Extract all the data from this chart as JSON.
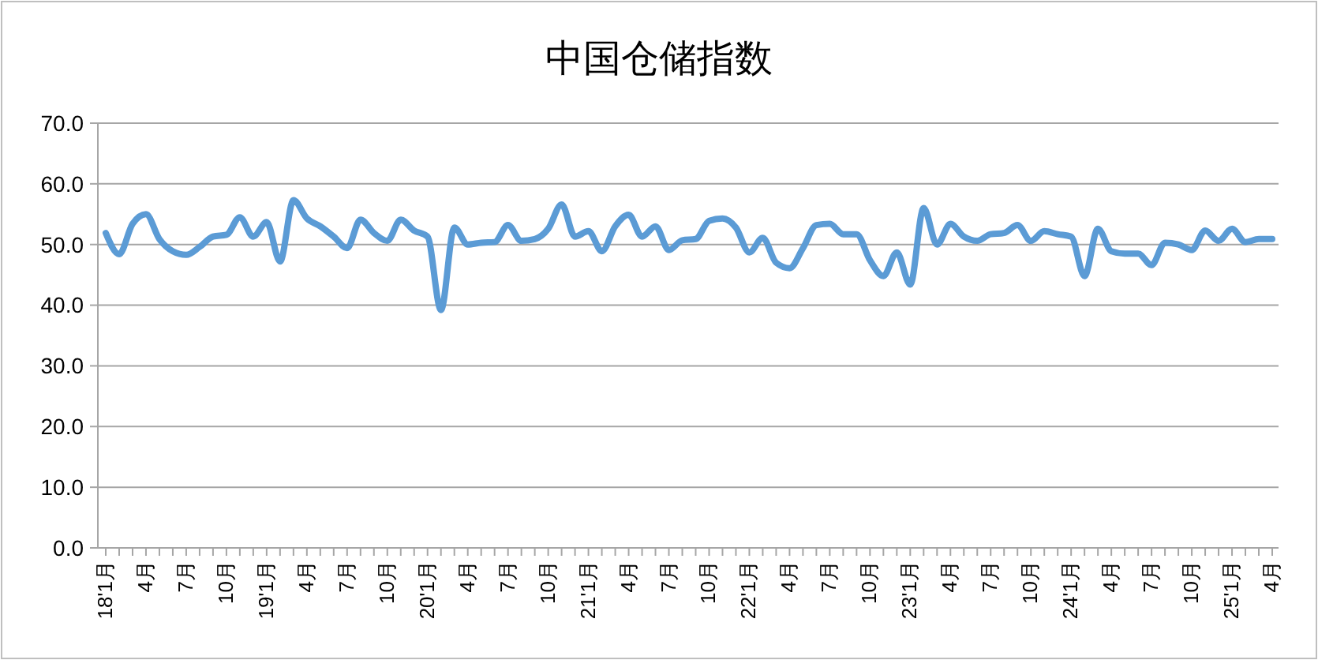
{
  "chart_data": {
    "type": "line",
    "title": "中国仓储指数",
    "categories": [
      "18'1月",
      null,
      null,
      "4月",
      null,
      null,
      "7月",
      null,
      null,
      "10月",
      null,
      null,
      "19'1月",
      null,
      null,
      "4月",
      null,
      null,
      "7月",
      null,
      null,
      "10月",
      null,
      null,
      "20'1月",
      null,
      null,
      "4月",
      null,
      null,
      "7月",
      null,
      null,
      "10月",
      null,
      null,
      "21'1月",
      null,
      null,
      "4月",
      null,
      null,
      "7月",
      null,
      null,
      "10月",
      null,
      null,
      "22'1月",
      null,
      null,
      "4月",
      null,
      null,
      "7月",
      null,
      null,
      "10月",
      null,
      null,
      "23'1月",
      null,
      null,
      "4月",
      null,
      null,
      "7月",
      null,
      null,
      "10月",
      null,
      null,
      "24'1月",
      null,
      null,
      "4月",
      null,
      null,
      "7月",
      null,
      null,
      "10月",
      null,
      null,
      "25'1月",
      null,
      null,
      "4月"
    ],
    "series": [
      {
        "color": "#5b9bd5",
        "values": [
          51.9,
          48.4,
          53.4,
          55.0,
          50.9,
          48.9,
          48.3,
          49.6,
          51.3,
          51.6,
          54.5,
          51.3,
          53.7,
          47.2,
          57.3,
          54.3,
          53.0,
          51.3,
          49.4,
          54.1,
          51.9,
          50.6,
          54.1,
          52.3,
          51.3,
          39.2,
          52.8,
          50.0,
          50.3,
          50.4,
          53.2,
          50.6,
          50.9,
          52.6,
          56.6,
          51.3,
          52.2,
          48.9,
          53.0,
          54.9,
          51.3,
          53.0,
          49.1,
          50.7,
          50.9,
          53.9,
          54.3,
          52.8,
          48.7,
          51.1,
          47.0,
          46.1,
          49.4,
          53.2,
          53.4,
          51.7,
          51.7,
          47.4,
          44.8,
          48.7,
          43.4,
          56.0,
          50.0,
          53.4,
          51.3,
          50.6,
          51.7,
          51.9,
          53.2,
          50.6,
          52.2,
          51.7,
          51.3,
          44.8,
          52.6,
          48.9,
          48.5,
          48.5,
          46.6,
          50.3,
          50.0,
          49.1,
          52.3,
          50.6,
          52.6,
          50.4,
          50.9,
          50.9
        ]
      }
    ],
    "ylim": [
      0,
      70
    ],
    "yticks": [
      {
        "value": 0,
        "label": "0.0"
      },
      {
        "value": 10,
        "label": "10.0"
      },
      {
        "value": 20,
        "label": "20.0"
      },
      {
        "value": 30,
        "label": "30.0"
      },
      {
        "value": 40,
        "label": "40.0"
      },
      {
        "value": 50,
        "label": "50.0"
      },
      {
        "value": 60,
        "label": "60.0"
      },
      {
        "value": 70,
        "label": "70.0"
      }
    ],
    "grid": "y",
    "marker": "none",
    "line_style": "solid"
  }
}
